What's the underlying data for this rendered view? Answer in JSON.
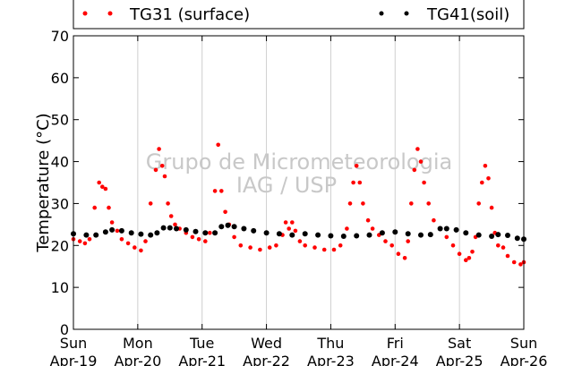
{
  "chart_data": {
    "type": "scatter",
    "ylabel": "Temperature (°C)",
    "ylim": [
      0,
      70
    ],
    "yticks": [
      0,
      10,
      20,
      30,
      40,
      50,
      60,
      70
    ],
    "xlim": [
      0,
      7
    ],
    "xticks": [
      {
        "x": 0,
        "day": "Sun",
        "date": "Apr-19"
      },
      {
        "x": 1,
        "day": "Mon",
        "date": "Apr-20"
      },
      {
        "x": 2,
        "day": "Tue",
        "date": "Apr-21"
      },
      {
        "x": 3,
        "day": "Wed",
        "date": "Apr-22"
      },
      {
        "x": 4,
        "day": "Thu",
        "date": "Apr-23"
      },
      {
        "x": 5,
        "day": "Fri",
        "date": "Apr-24"
      },
      {
        "x": 6,
        "day": "Sat",
        "date": "Apr-25"
      },
      {
        "x": 7,
        "day": "Sun",
        "date": "Apr-26"
      }
    ],
    "grid": "vertical",
    "legend_position": "top",
    "watermark": [
      "Grupo de Micrometeorologia",
      "IAG / USP"
    ],
    "series": [
      {
        "name": "TG31 (surface)",
        "color": "#ff0000",
        "x": [
          0.0,
          0.1,
          0.18,
          0.25,
          0.33,
          0.4,
          0.45,
          0.5,
          0.55,
          0.6,
          0.68,
          0.75,
          0.85,
          0.95,
          1.05,
          1.12,
          1.2,
          1.28,
          1.33,
          1.38,
          1.42,
          1.47,
          1.52,
          1.58,
          1.65,
          1.75,
          1.85,
          1.95,
          2.05,
          2.12,
          2.2,
          2.25,
          2.3,
          2.36,
          2.42,
          2.5,
          2.6,
          2.75,
          2.9,
          3.05,
          3.15,
          3.25,
          3.3,
          3.35,
          3.4,
          3.45,
          3.52,
          3.6,
          3.75,
          3.9,
          4.05,
          4.15,
          4.25,
          4.3,
          4.35,
          4.4,
          4.45,
          4.5,
          4.58,
          4.65,
          4.75,
          4.85,
          4.95,
          5.05,
          5.15,
          5.2,
          5.25,
          5.3,
          5.35,
          5.4,
          5.45,
          5.52,
          5.6,
          5.7,
          5.8,
          5.9,
          6.0,
          6.1,
          6.15,
          6.2,
          6.25,
          6.3,
          6.35,
          6.4,
          6.45,
          6.5,
          6.55,
          6.6,
          6.68,
          6.75,
          6.85,
          6.95,
          7.0
        ],
        "y": [
          21.5,
          21.0,
          20.5,
          21.5,
          29.0,
          35.0,
          34.0,
          33.5,
          29.0,
          25.5,
          23.5,
          21.5,
          20.5,
          19.5,
          18.8,
          21.0,
          30.0,
          38.0,
          43.0,
          39.0,
          36.5,
          30.0,
          27.0,
          25.0,
          24.0,
          23.0,
          22.0,
          21.5,
          21.0,
          23.0,
          33.0,
          44.0,
          33.0,
          28.0,
          25.0,
          22.0,
          20.0,
          19.5,
          19.0,
          19.5,
          20.0,
          22.5,
          25.5,
          24.0,
          25.5,
          23.5,
          21.0,
          20.0,
          19.5,
          19.0,
          19.0,
          20.0,
          24.0,
          30.0,
          35.0,
          39.0,
          35.0,
          30.0,
          26.0,
          24.0,
          22.5,
          21.0,
          20.0,
          18.0,
          17.0,
          21.0,
          30.0,
          38.0,
          43.0,
          40.0,
          35.0,
          30.0,
          26.0,
          24.0,
          22.0,
          20.0,
          18.0,
          16.5,
          17.0,
          18.5,
          22.0,
          30.0,
          35.0,
          39.0,
          36.0,
          29.0,
          23.0,
          20.0,
          19.5,
          17.5,
          16.0,
          15.5,
          16.0
        ]
      },
      {
        "name": "TG41(soil)",
        "color": "#000000",
        "x": [
          0.0,
          0.2,
          0.35,
          0.5,
          0.6,
          0.75,
          0.9,
          1.05,
          1.2,
          1.3,
          1.4,
          1.5,
          1.6,
          1.75,
          1.9,
          2.05,
          2.2,
          2.3,
          2.4,
          2.5,
          2.65,
          2.8,
          3.0,
          3.2,
          3.4,
          3.6,
          3.8,
          4.0,
          4.2,
          4.4,
          4.6,
          4.8,
          5.0,
          5.2,
          5.4,
          5.55,
          5.7,
          5.8,
          5.95,
          6.1,
          6.3,
          6.5,
          6.6,
          6.75,
          6.9,
          7.0
        ],
        "y": [
          22.8,
          22.5,
          22.5,
          23.2,
          23.7,
          23.5,
          23.0,
          22.7,
          22.5,
          23.0,
          24.2,
          24.2,
          24.0,
          23.7,
          23.3,
          23.0,
          23.0,
          24.5,
          24.8,
          24.5,
          24.0,
          23.5,
          23.0,
          22.8,
          22.5,
          22.8,
          22.5,
          22.3,
          22.2,
          22.3,
          22.5,
          23.0,
          23.2,
          22.8,
          22.5,
          22.6,
          24.0,
          24.0,
          23.7,
          23.0,
          22.5,
          22.2,
          22.6,
          22.4,
          21.7,
          21.5
        ]
      }
    ]
  }
}
